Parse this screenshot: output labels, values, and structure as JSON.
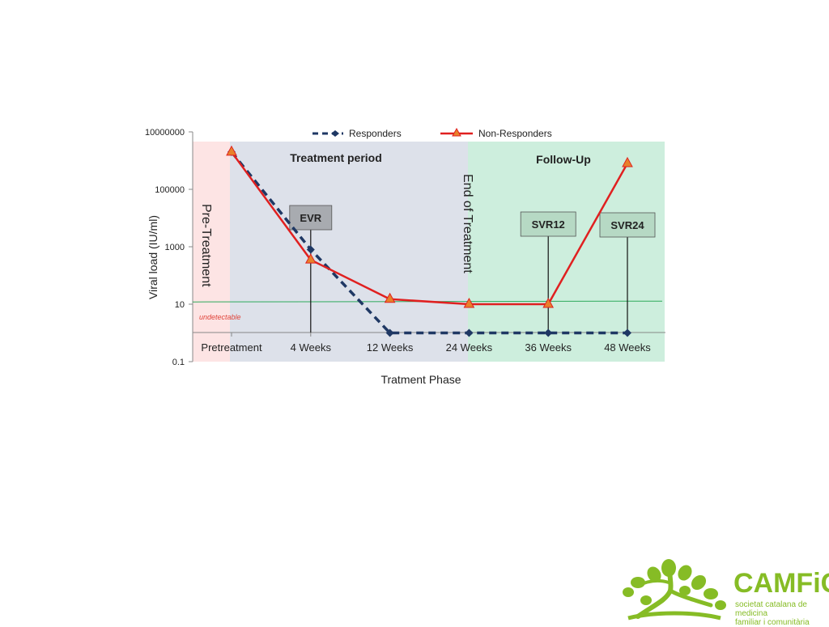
{
  "chart_data": {
    "type": "line",
    "title": "",
    "xlabel": "Tratment Phase",
    "ylabel": "Viral load    (IU/ml)",
    "y_scale": "log",
    "ylim": [
      0.1,
      10000000
    ],
    "y_ticks": [
      "0.1",
      "10",
      "1000",
      "100000",
      "10000000"
    ],
    "categories": [
      "Pretreatment",
      "4 Weeks",
      "12 Weeks",
      "24 Weeks",
      "36 Weeks",
      "48 Weeks"
    ],
    "series": [
      {
        "name": "Responders",
        "color": "#1f3864",
        "style": "dashed",
        "marker": "diamond",
        "points": [
          [
            0,
            2000000
          ],
          [
            1,
            800
          ],
          [
            2,
            1
          ],
          [
            3,
            1
          ],
          [
            4,
            1
          ],
          [
            5,
            1
          ]
        ]
      },
      {
        "name": "Non-Responders",
        "color": "#e02020",
        "style": "solid",
        "marker": "triangle",
        "marker_color": "#e8812a",
        "points": [
          [
            0,
            2000000
          ],
          [
            1,
            350
          ],
          [
            2,
            15
          ],
          [
            3,
            10
          ],
          [
            4,
            10
          ],
          [
            5,
            800000
          ]
        ]
      }
    ],
    "threshold": {
      "value": 12,
      "color": "#2eaa5c",
      "label": "undetectable"
    },
    "regions": [
      {
        "label": "Pre-Treatment",
        "color": "#fde4e4",
        "from": 0,
        "to": 0
      },
      {
        "label": "Treatment period",
        "color": "#dde1ea",
        "from": 0,
        "to": 3
      },
      {
        "label": "Follow-Up",
        "color": "#cdeedd",
        "from": 3,
        "to": 5
      }
    ],
    "end_of_treatment_label": "End of Treatment",
    "milestones": [
      {
        "label": "EVR",
        "at": 1,
        "box_color": "#a8abb0"
      },
      {
        "label": "SVR12",
        "at": 4,
        "box_color": "#b6d9c4"
      },
      {
        "label": "SVR24",
        "at": 5,
        "box_color": "#b6d9c4"
      }
    ],
    "legend": {
      "position": "top"
    },
    "grid": false
  },
  "logo": {
    "name": "CAMFiC",
    "subtitle_line1": "societat catalana de medicina",
    "subtitle_line2": "familiar i comunitària",
    "color": "#86bc25"
  }
}
